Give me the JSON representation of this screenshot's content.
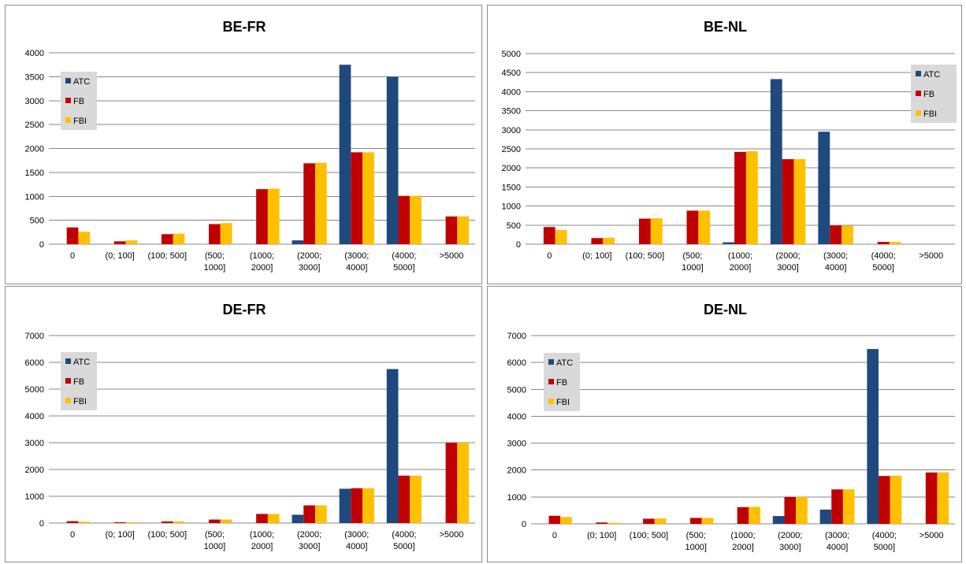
{
  "colors": {
    "ATC": "#1F497D",
    "FB": "#C00000",
    "FBI": "#FFC000",
    "grid": "#878787",
    "legend_bg": "#D9D9D9"
  },
  "chart_data": [
    {
      "type": "bar",
      "title": "BE-FR",
      "categories": [
        "0",
        "(0; 100]",
        "(100; 500]",
        "(500; 1000]",
        "(1000; 2000]",
        "(2000; 3000]",
        "(3000; 4000]",
        "(4000; 5000]",
        ">5000"
      ],
      "series": [
        {
          "name": "ATC",
          "values": [
            0,
            0,
            0,
            0,
            0,
            80,
            3750,
            3500,
            0
          ]
        },
        {
          "name": "FB",
          "values": [
            350,
            60,
            210,
            420,
            1150,
            1690,
            1920,
            1010,
            580
          ]
        },
        {
          "name": "FBI",
          "values": [
            260,
            80,
            220,
            440,
            1160,
            1700,
            1920,
            1010,
            580
          ]
        }
      ],
      "ylim": [
        0,
        4000
      ],
      "yticks": [
        0,
        500,
        1000,
        1500,
        2000,
        2500,
        3000,
        3500,
        4000
      ],
      "legend": "top-left",
      "grid": true
    },
    {
      "type": "bar",
      "title": "BE-NL",
      "categories": [
        "0",
        "(0; 100]",
        "(100; 500]",
        "(500; 1000]",
        "(1000; 2000]",
        "(2000; 3000]",
        "(3000; 4000]",
        "(4000; 5000]",
        ">5000"
      ],
      "series": [
        {
          "name": "ATC",
          "values": [
            0,
            0,
            0,
            0,
            50,
            4330,
            2950,
            0,
            0
          ]
        },
        {
          "name": "FB",
          "values": [
            450,
            160,
            670,
            880,
            2420,
            2230,
            490,
            60,
            0
          ]
        },
        {
          "name": "FBI",
          "values": [
            370,
            170,
            680,
            880,
            2440,
            2230,
            490,
            60,
            0
          ]
        }
      ],
      "ylim": [
        0,
        5000
      ],
      "yticks": [
        0,
        500,
        1000,
        1500,
        2000,
        2500,
        3000,
        3500,
        4000,
        4500,
        5000
      ],
      "legend": "top-right",
      "grid": true
    },
    {
      "type": "bar",
      "title": "DE-FR",
      "categories": [
        "0",
        "(0; 100]",
        "(100; 500]",
        "(500; 1000]",
        "(1000; 2000]",
        "(2000; 3000]",
        "(3000; 4000]",
        "(4000; 5000]",
        ">5000"
      ],
      "series": [
        {
          "name": "ATC",
          "values": [
            0,
            0,
            0,
            0,
            0,
            310,
            1280,
            5750,
            0
          ]
        },
        {
          "name": "FB",
          "values": [
            70,
            30,
            60,
            130,
            340,
            660,
            1300,
            1770,
            3000
          ]
        },
        {
          "name": "FBI",
          "values": [
            50,
            30,
            60,
            130,
            340,
            660,
            1300,
            1770,
            3000
          ]
        }
      ],
      "ylim": [
        0,
        7000
      ],
      "yticks": [
        0,
        1000,
        2000,
        3000,
        4000,
        5000,
        6000,
        7000
      ],
      "legend": "top-left",
      "grid": true
    },
    {
      "type": "bar",
      "title": "DE-NL",
      "categories": [
        "0",
        "(0; 100]",
        "(100; 500]",
        "(500; 1000]",
        "(1000; 2000]",
        "(2000; 3000]",
        "(3000; 4000]",
        "(4000; 5000]",
        ">5000"
      ],
      "series": [
        {
          "name": "ATC",
          "values": [
            0,
            0,
            0,
            0,
            0,
            290,
            530,
            6500,
            0
          ]
        },
        {
          "name": "FB",
          "values": [
            300,
            50,
            190,
            220,
            620,
            1000,
            1280,
            1780,
            1910
          ]
        },
        {
          "name": "FBI",
          "values": [
            250,
            40,
            200,
            220,
            630,
            1000,
            1280,
            1790,
            1910
          ]
        }
      ],
      "ylim": [
        0,
        7000
      ],
      "yticks": [
        0,
        1000,
        2000,
        3000,
        4000,
        5000,
        6000,
        7000
      ],
      "legend": "top-left",
      "grid": true
    }
  ]
}
